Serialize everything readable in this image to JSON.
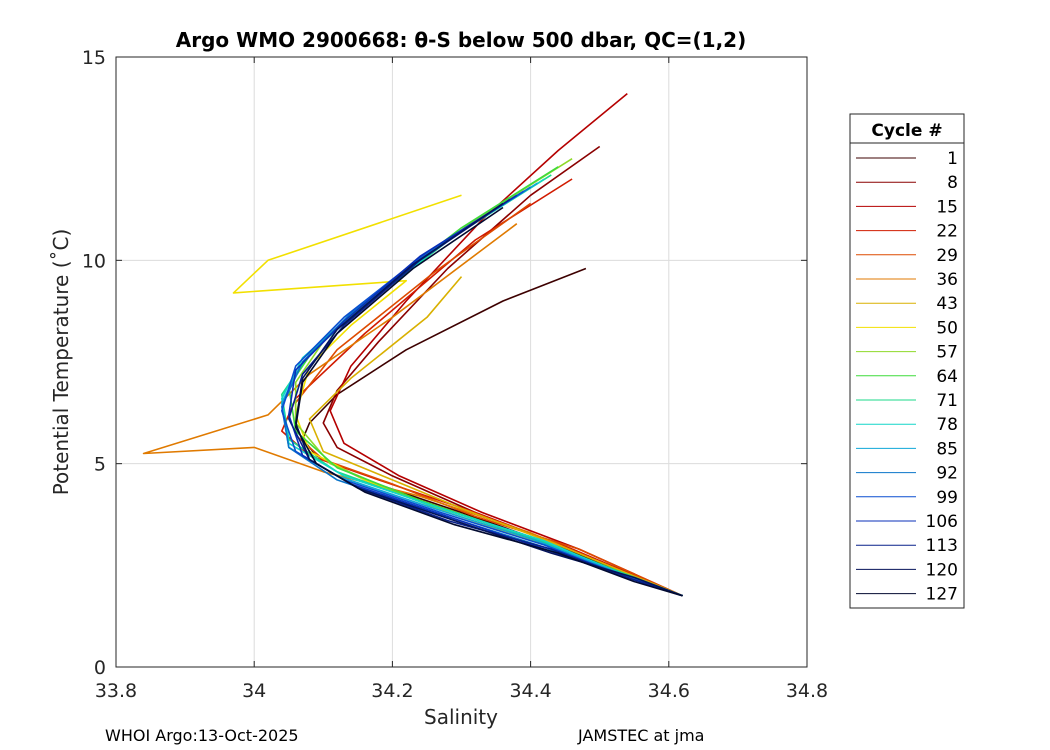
{
  "chart_data": {
    "type": "line",
    "title": "Argo WMO 2900668: θ-S below 500 dbar,  QC=(1,2)",
    "xlabel": "Salinity",
    "ylabel": "Potential Temperature (˚C)",
    "xlim": [
      33.8,
      34.8
    ],
    "ylim": [
      0,
      15
    ],
    "xticks": [
      33.8,
      34,
      34.2,
      34.4,
      34.6,
      34.8
    ],
    "xtick_labels": [
      "33.8",
      "34",
      "34.2",
      "34.4",
      "34.6",
      "34.8"
    ],
    "yticks": [
      0,
      5,
      10,
      15
    ],
    "ytick_labels": [
      "0",
      "5",
      "10",
      "15"
    ],
    "grid": true,
    "legend": {
      "title": "Cycle #",
      "position": "right",
      "entries": [
        {
          "label": "1",
          "color": "#3d0000"
        },
        {
          "label": "8",
          "color": "#8a0000"
        },
        {
          "label": "15",
          "color": "#b50000"
        },
        {
          "label": "22",
          "color": "#d11b00"
        },
        {
          "label": "29",
          "color": "#de4a00"
        },
        {
          "label": "36",
          "color": "#e07a00"
        },
        {
          "label": "43",
          "color": "#d9b000"
        },
        {
          "label": "50",
          "color": "#f2e000"
        },
        {
          "label": "57",
          "color": "#8ed92a"
        },
        {
          "label": "64",
          "color": "#3edb3a"
        },
        {
          "label": "71",
          "color": "#1bd98a"
        },
        {
          "label": "78",
          "color": "#12d6c8"
        },
        {
          "label": "85",
          "color": "#0fa7d8"
        },
        {
          "label": "92",
          "color": "#0a74c9"
        },
        {
          "label": "99",
          "color": "#0a4fd0"
        },
        {
          "label": "106",
          "color": "#0a2fb8"
        },
        {
          "label": "113",
          "color": "#08208a"
        },
        {
          "label": "120",
          "color": "#04135a"
        },
        {
          "label": "127",
          "color": "#020a30"
        }
      ]
    },
    "series": [
      {
        "name": "1",
        "color": "#3d0000",
        "s": [
          34.48,
          34.36,
          34.22,
          34.12,
          34.08,
          34.07,
          34.09,
          34.16,
          34.3,
          34.45,
          34.62
        ],
        "t": [
          9.8,
          9.0,
          7.8,
          6.7,
          6.0,
          5.6,
          5.2,
          4.6,
          3.8,
          2.9,
          1.75
        ]
      },
      {
        "name": "8",
        "color": "#8a0000",
        "s": [
          34.5,
          34.4,
          34.28,
          34.18,
          34.12,
          34.1,
          34.12,
          34.2,
          34.32,
          34.46,
          34.62
        ],
        "t": [
          12.8,
          11.6,
          9.8,
          8.0,
          6.8,
          6.0,
          5.4,
          4.7,
          3.8,
          2.9,
          1.75
        ]
      },
      {
        "name": "15",
        "color": "#b50000",
        "s": [
          34.54,
          34.44,
          34.33,
          34.22,
          34.14,
          34.11,
          34.13,
          34.21,
          34.33,
          34.47,
          34.62
        ],
        "t": [
          14.1,
          12.7,
          11.0,
          9.0,
          7.4,
          6.3,
          5.5,
          4.7,
          3.8,
          2.9,
          1.75
        ]
      },
      {
        "name": "22",
        "color": "#d11b00",
        "s": [
          34.46,
          34.32,
          34.16,
          34.06,
          34.04,
          34.08,
          34.18,
          34.32,
          34.46,
          34.62
        ],
        "t": [
          12.0,
          10.5,
          8.2,
          6.6,
          5.8,
          5.2,
          4.6,
          3.8,
          2.9,
          1.75
        ]
      },
      {
        "name": "29",
        "color": "#de4a00",
        "s": [
          34.4,
          34.26,
          34.12,
          34.06,
          34.06,
          34.1,
          34.2,
          34.32,
          34.47,
          34.62
        ],
        "t": [
          11.4,
          9.7,
          7.8,
          6.5,
          5.7,
          5.1,
          4.5,
          3.7,
          2.9,
          1.75
        ]
      },
      {
        "name": "36",
        "color": "#e07a00",
        "s": [
          34.38,
          34.2,
          34.08,
          34.02,
          33.84,
          34.0,
          34.1,
          34.24,
          34.4,
          34.54,
          34.62
        ],
        "t": [
          10.9,
          8.6,
          7.2,
          6.2,
          5.25,
          5.4,
          4.8,
          4.2,
          3.3,
          2.3,
          1.75
        ]
      },
      {
        "name": "43",
        "color": "#d9b000",
        "s": [
          34.3,
          34.25,
          34.14,
          34.08,
          34.1,
          34.2,
          34.3,
          34.44,
          34.62
        ],
        "t": [
          9.6,
          8.6,
          7.1,
          6.1,
          5.3,
          4.6,
          3.9,
          3.0,
          1.75
        ]
      },
      {
        "name": "50",
        "color": "#f2e000",
        "s": [
          34.3,
          34.02,
          33.97,
          34.22,
          34.14,
          34.08,
          34.06,
          34.08,
          34.16,
          34.28,
          34.44,
          34.62
        ],
        "t": [
          11.6,
          10.0,
          9.2,
          9.5,
          8.4,
          7.4,
          6.2,
          5.3,
          4.6,
          3.8,
          2.9,
          1.75
        ]
      },
      {
        "name": "57",
        "color": "#8ed92a",
        "s": [
          34.46,
          34.32,
          34.18,
          34.1,
          34.06,
          34.06,
          34.11,
          34.22,
          34.36,
          34.5,
          34.62
        ],
        "t": [
          12.5,
          11.0,
          9.2,
          8.0,
          7.0,
          6.0,
          5.0,
          4.2,
          3.4,
          2.5,
          1.75
        ]
      },
      {
        "name": "64",
        "color": "#3edb3a",
        "s": [
          34.44,
          34.3,
          34.17,
          34.09,
          34.05,
          34.06,
          34.12,
          34.24,
          34.38,
          34.51,
          34.62
        ],
        "t": [
          12.3,
          10.8,
          9.1,
          7.9,
          6.9,
          5.8,
          4.9,
          4.1,
          3.3,
          2.4,
          1.75
        ]
      },
      {
        "name": "71",
        "color": "#1bd98a",
        "s": [
          34.43,
          34.29,
          34.16,
          34.08,
          34.04,
          34.05,
          34.12,
          34.25,
          34.4,
          34.52,
          34.62
        ],
        "t": [
          12.1,
          10.6,
          8.9,
          7.7,
          6.7,
          5.6,
          4.8,
          4.0,
          3.2,
          2.4,
          1.75
        ]
      },
      {
        "name": "78",
        "color": "#12d6c8",
        "s": [
          34.42,
          34.28,
          34.15,
          34.07,
          34.04,
          34.05,
          34.13,
          34.27,
          34.42,
          34.53,
          34.62
        ],
        "t": [
          12.0,
          10.5,
          8.8,
          7.6,
          6.6,
          5.5,
          4.7,
          3.9,
          3.1,
          2.3,
          1.75
        ]
      },
      {
        "name": "85",
        "color": "#0fa7d8",
        "s": [
          34.41,
          34.27,
          34.14,
          34.07,
          34.04,
          34.05,
          34.12,
          34.26,
          34.41,
          34.53,
          34.62
        ],
        "t": [
          11.9,
          10.4,
          8.7,
          7.5,
          6.5,
          5.4,
          4.7,
          3.9,
          3.1,
          2.3,
          1.75
        ]
      },
      {
        "name": "92",
        "color": "#0a74c9",
        "s": [
          34.4,
          34.26,
          34.14,
          34.07,
          34.04,
          34.05,
          34.12,
          34.26,
          34.41,
          34.53,
          34.62
        ],
        "t": [
          11.8,
          10.3,
          8.7,
          7.5,
          6.4,
          5.4,
          4.6,
          3.8,
          3.0,
          2.3,
          1.75
        ]
      },
      {
        "name": "99",
        "color": "#0a4fd0",
        "s": [
          34.39,
          34.25,
          34.13,
          34.06,
          34.04,
          34.06,
          34.13,
          34.27,
          34.42,
          34.54,
          34.62
        ],
        "t": [
          11.7,
          10.2,
          8.6,
          7.4,
          6.3,
          5.3,
          4.6,
          3.8,
          3.0,
          2.2,
          1.75
        ]
      },
      {
        "name": "106",
        "color": "#0a2fb8",
        "s": [
          34.38,
          34.24,
          34.13,
          34.06,
          34.05,
          34.07,
          34.14,
          34.28,
          34.42,
          34.54,
          34.62
        ],
        "t": [
          11.6,
          10.1,
          8.5,
          7.3,
          6.2,
          5.2,
          4.5,
          3.7,
          2.9,
          2.2,
          1.75
        ]
      },
      {
        "name": "113",
        "color": "#08208a",
        "s": [
          34.37,
          34.24,
          34.13,
          34.07,
          34.05,
          34.08,
          34.15,
          34.28,
          34.43,
          34.54,
          34.62
        ],
        "t": [
          11.5,
          10.0,
          8.4,
          7.2,
          6.1,
          5.1,
          4.4,
          3.6,
          2.9,
          2.2,
          1.75
        ]
      },
      {
        "name": "120",
        "color": "#04135a",
        "s": [
          34.36,
          34.23,
          34.12,
          34.07,
          34.06,
          34.08,
          34.15,
          34.29,
          34.43,
          34.55,
          34.62
        ],
        "t": [
          11.4,
          9.9,
          8.3,
          7.1,
          6.0,
          5.1,
          4.4,
          3.6,
          2.8,
          2.2,
          1.75
        ]
      },
      {
        "name": "127",
        "color": "#020a30",
        "s": [
          34.36,
          34.23,
          34.12,
          34.07,
          34.06,
          34.09,
          34.16,
          34.29,
          34.44,
          34.55,
          34.62
        ],
        "t": [
          11.3,
          9.8,
          8.2,
          7.0,
          5.9,
          5.0,
          4.3,
          3.5,
          2.8,
          2.1,
          1.75
        ]
      }
    ]
  },
  "footer": {
    "left": "WHOI Argo:13-Oct-2025",
    "right": "JAMSTEC at jma"
  }
}
